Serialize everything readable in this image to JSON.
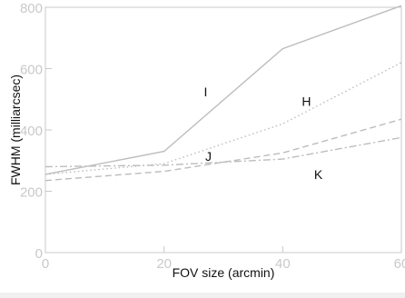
{
  "chart_data": {
    "type": "line",
    "title": "",
    "xlabel": "FOV size (arcmin)",
    "ylabel": "FWHM (milliarcsec)",
    "xlim": [
      0,
      60
    ],
    "ylim": [
      0,
      800
    ],
    "xticks": [
      "0",
      "20",
      "40",
      "60"
    ],
    "yticks": [
      "0",
      "200",
      "400",
      "600",
      "800"
    ],
    "grid": false,
    "legend": "none",
    "x": [
      0,
      20,
      40,
      60
    ],
    "series": [
      {
        "name": "I",
        "values": [
          255,
          330,
          665,
          805
        ],
        "style": "solid",
        "color": "#bdbdbd"
      },
      {
        "name": "J",
        "values": [
          255,
          290,
          420,
          620
        ],
        "style": "dotted",
        "color": "#bdbdbd"
      },
      {
        "name": "H",
        "values": [
          235,
          265,
          325,
          435
        ],
        "style": "dashed",
        "color": "#bdbdbd"
      },
      {
        "name": "K",
        "values": [
          280,
          285,
          305,
          375
        ],
        "style": "dashdot",
        "color": "#bdbdbd"
      }
    ]
  }
}
